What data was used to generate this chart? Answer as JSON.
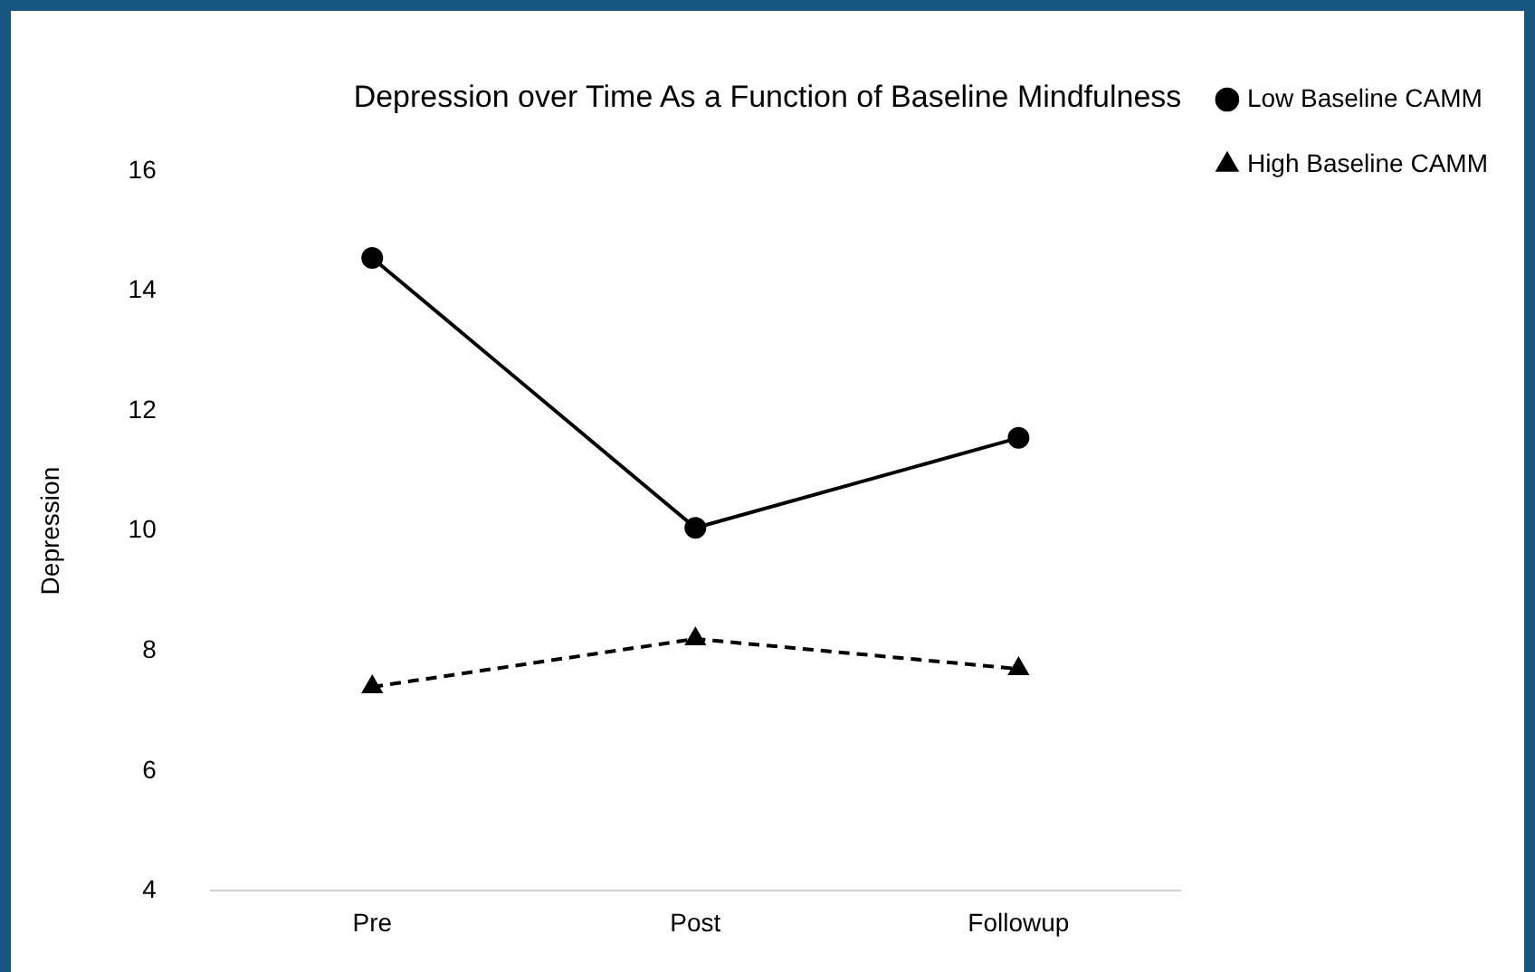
{
  "chart_data": {
    "type": "line",
    "title": "Depression over Time As a Function of Baseline Mindfulness",
    "ylabel": "Depression",
    "categories": [
      "Pre",
      "Post",
      "Followup"
    ],
    "series": [
      {
        "name": "Low Baseline CAMM",
        "color": "#000000",
        "values": [
          14.55,
          10.05,
          11.55
        ],
        "marker": "circle",
        "line_style": "solid"
      },
      {
        "name": "High Baseline CAMM",
        "color": "#000000",
        "values": [
          7.4,
          8.2,
          7.7
        ],
        "marker": "triangle",
        "line_style": "dashed"
      }
    ],
    "ylim": [
      4,
      16
    ],
    "yticks": [
      4,
      6,
      8,
      10,
      12,
      14,
      16
    ],
    "grid": false,
    "legend": "top right"
  }
}
